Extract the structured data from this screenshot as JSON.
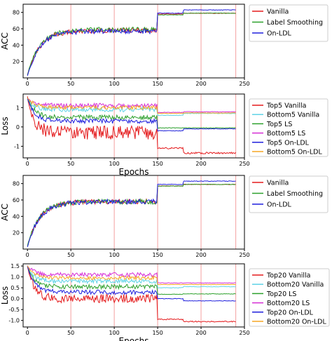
{
  "colors": {
    "red": "#e41a1c",
    "green": "#2ca02c",
    "blue": "#1f1fdd",
    "cyan": "#5fd3e6",
    "magenta": "#d62cd6",
    "orange": "#f5a623",
    "vline": "#f4a0a0"
  },
  "chart_data": [
    {
      "type": "line",
      "xlabel": "",
      "ylabel": "ACC",
      "xlim": [
        -5,
        250
      ],
      "ylim": [
        0,
        90
      ],
      "xticks": [
        0,
        50,
        100,
        150,
        200,
        250
      ],
      "yticks": [
        20,
        40,
        60,
        80
      ],
      "vlines": [
        50,
        100,
        150,
        200,
        240
      ],
      "legend": "outside-right",
      "series": [
        {
          "name": "Vanilla",
          "color": "red",
          "start": 3,
          "plateau1": 58,
          "plateau2": 78,
          "plateau3": 79,
          "noise": 3
        },
        {
          "name": "Label Smoothing",
          "color": "green",
          "start": 4,
          "plateau1": 59,
          "plateau2": 77,
          "plateau3": 79,
          "noise": 3
        },
        {
          "name": "On-LDL",
          "color": "blue",
          "start": 2,
          "plateau1": 57,
          "plateau2": 79,
          "plateau3": 83,
          "noise": 3
        }
      ]
    },
    {
      "type": "line",
      "xlabel": "Epochs",
      "ylabel": "Loss",
      "xlim": [
        -5,
        250
      ],
      "ylim": [
        -1.6,
        1.7
      ],
      "xticks": [
        0,
        50,
        100,
        150,
        200,
        250
      ],
      "yticks": [
        -1,
        0,
        1
      ],
      "vlines": [
        50,
        100,
        150,
        200,
        240
      ],
      "legend": "outside-right",
      "series": [
        {
          "name": "Top5 Vanilla",
          "color": "red",
          "start": 1.5,
          "plateau1": -0.3,
          "plateau2": -1.1,
          "plateau3": -1.35,
          "noise": 0.35
        },
        {
          "name": "Bottom5 Vanilla",
          "color": "cyan",
          "start": 1.45,
          "plateau1": 0.9,
          "plateau2": 0.6,
          "plateau3": 0.7,
          "noise": 0.12
        },
        {
          "name": "Top5 LS",
          "color": "green",
          "start": 1.5,
          "plateau1": 0.5,
          "plateau2": -0.05,
          "plateau3": -0.05,
          "noise": 0.12
        },
        {
          "name": "Bottom5 LS",
          "color": "magenta",
          "start": 1.5,
          "plateau1": 1.1,
          "plateau2": 0.75,
          "plateau3": 0.78,
          "noise": 0.12
        },
        {
          "name": "Top5 On-LDL",
          "color": "blue",
          "start": 1.5,
          "plateau1": 0.3,
          "plateau2": -0.2,
          "plateau3": -0.1,
          "noise": 0.12
        },
        {
          "name": "Bottom5 On-LDL",
          "color": "orange",
          "start": 1.5,
          "plateau1": 1.0,
          "plateau2": 0.7,
          "plateau3": 0.72,
          "noise": 0.1
        }
      ]
    },
    {
      "type": "line",
      "xlabel": "",
      "ylabel": "ACC",
      "xlim": [
        -5,
        250
      ],
      "ylim": [
        0,
        90
      ],
      "xticks": [
        0,
        50,
        100,
        150,
        200,
        250
      ],
      "yticks": [
        20,
        40,
        60,
        80
      ],
      "vlines": [
        50,
        100,
        150,
        200,
        240
      ],
      "legend": "outside-right",
      "series": [
        {
          "name": "Vanilla",
          "color": "red",
          "start": 3,
          "plateau1": 58,
          "plateau2": 77,
          "plateau3": 79,
          "noise": 3
        },
        {
          "name": "Label Smoothing",
          "color": "green",
          "start": 4,
          "plateau1": 58,
          "plateau2": 77,
          "plateau3": 79,
          "noise": 3
        },
        {
          "name": "On-LDL",
          "color": "blue",
          "start": 2,
          "plateau1": 58,
          "plateau2": 79,
          "plateau3": 83,
          "noise": 3
        }
      ]
    },
    {
      "type": "line",
      "xlabel": "Epochs",
      "ylabel": "Loss",
      "xlim": [
        -5,
        250
      ],
      "ylim": [
        -1.3,
        1.6
      ],
      "xticks": [
        0,
        50,
        100,
        150,
        200,
        250
      ],
      "yticks": [
        -1.0,
        -0.5,
        0.0,
        0.5,
        1.0,
        1.5
      ],
      "yticklabels": [
        "-1.0",
        "-0.5",
        "0.0",
        "0.5",
        "1.0",
        "1.5"
      ],
      "vlines": [
        50,
        100,
        150,
        200,
        240
      ],
      "legend": "outside-right",
      "series": [
        {
          "name": "Top20 Vanilla",
          "color": "red",
          "start": 1.5,
          "plateau1": 0.0,
          "plateau2": -0.95,
          "plateau3": -1.05,
          "noise": 0.2
        },
        {
          "name": "Bottom20 Vanilla",
          "color": "cyan",
          "start": 1.45,
          "plateau1": 0.8,
          "plateau2": 0.5,
          "plateau3": 0.55,
          "noise": 0.1
        },
        {
          "name": "Top20 LS",
          "color": "green",
          "start": 1.5,
          "plateau1": 0.55,
          "plateau2": 0.2,
          "plateau3": 0.22,
          "noise": 0.1
        },
        {
          "name": "Bottom20 LS",
          "color": "magenta",
          "start": 1.5,
          "plateau1": 1.1,
          "plateau2": 0.72,
          "plateau3": 0.72,
          "noise": 0.1
        },
        {
          "name": "Top20 On-LDL",
          "color": "blue",
          "start": 1.5,
          "plateau1": 0.3,
          "plateau2": 0.0,
          "plateau3": -0.1,
          "noise": 0.1
        },
        {
          "name": "Bottom20 On-LDL",
          "color": "orange",
          "start": 1.5,
          "plateau1": 0.95,
          "plateau2": 0.65,
          "plateau3": 0.65,
          "noise": 0.08
        }
      ]
    }
  ]
}
